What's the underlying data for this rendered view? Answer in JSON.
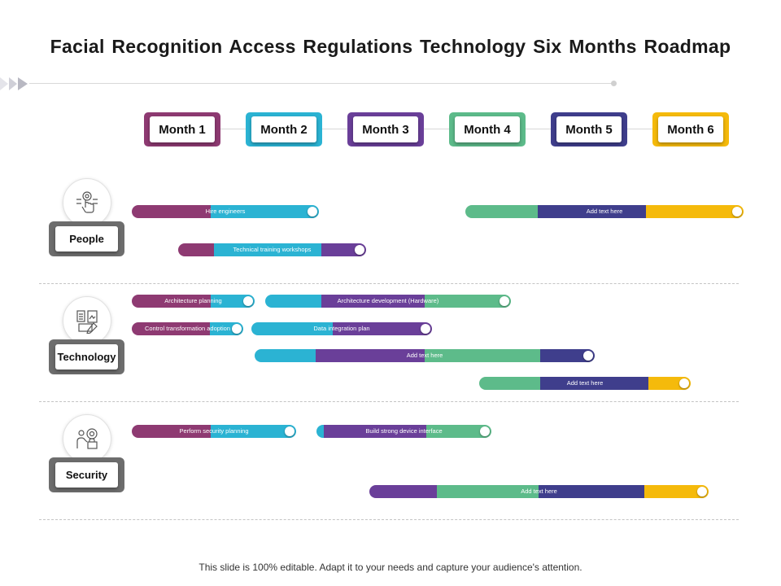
{
  "title": "Facial Recognition Access Regulations Technology Six Months Roadmap",
  "months": [
    {
      "label": "Month 1",
      "color": "#8E3A72"
    },
    {
      "label": "Month 2",
      "color": "#2BB3D3"
    },
    {
      "label": "Month 3",
      "color": "#6A3F99"
    },
    {
      "label": "Month 4",
      "color": "#5DBB8A"
    },
    {
      "label": "Month 5",
      "color": "#3F3E8C"
    },
    {
      "label": "Month 6",
      "color": "#F5BA0B"
    }
  ],
  "categories": [
    {
      "label": "People",
      "icon": "hand-touch-icon"
    },
    {
      "label": "Technology",
      "icon": "documents-icon"
    },
    {
      "label": "Security",
      "icon": "person-gear-icon"
    }
  ],
  "tasks": [
    {
      "label": "Hire engineers",
      "category": "People",
      "segments": [
        "#8E3A72",
        "#2BB3D3"
      ]
    },
    {
      "label": "Add text here",
      "category": "People",
      "segments": [
        "#5DBB8A",
        "#3F3E8C",
        "#F5BA0B"
      ]
    },
    {
      "label": "Technical  training workshops",
      "category": "People",
      "segments": [
        "#8E3A72",
        "#2BB3D3",
        "#6A3F99"
      ]
    },
    {
      "label": "Architecture  planning",
      "category": "Technology",
      "segments": [
        "#8E3A72",
        "#2BB3D3"
      ]
    },
    {
      "label": "Architecture  development  (Hardware)",
      "category": "Technology",
      "segments": [
        "#2BB3D3",
        "#6A3F99",
        "#5DBB8A"
      ]
    },
    {
      "label": "Control  transformation  adoption",
      "category": "Technology",
      "segments": [
        "#8E3A72",
        "#2BB3D3"
      ]
    },
    {
      "label": "Data integration  plan",
      "category": "Technology",
      "segments": [
        "#2BB3D3",
        "#6A3F99"
      ]
    },
    {
      "label": "Add text here",
      "category": "Technology",
      "segments": [
        "#2BB3D3",
        "#6A3F99",
        "#5DBB8A",
        "#3F3E8C"
      ]
    },
    {
      "label": "Add text here",
      "category": "Technology",
      "segments": [
        "#5DBB8A",
        "#3F3E8C",
        "#F5BA0B"
      ]
    },
    {
      "label": "Perform  security planning",
      "category": "Security",
      "segments": [
        "#8E3A72",
        "#2BB3D3"
      ]
    },
    {
      "label": "Build strong  device interface",
      "category": "Security",
      "segments": [
        "#2BB3D3",
        "#6A3F99",
        "#5DBB8A"
      ]
    },
    {
      "label": "Add text here",
      "category": "Security",
      "segments": [
        "#6A3F99",
        "#5DBB8A",
        "#3F3E8C",
        "#F5BA0B"
      ]
    }
  ],
  "footer": "This slide is 100% editable. Adapt it to your needs and capture your audience's attention."
}
